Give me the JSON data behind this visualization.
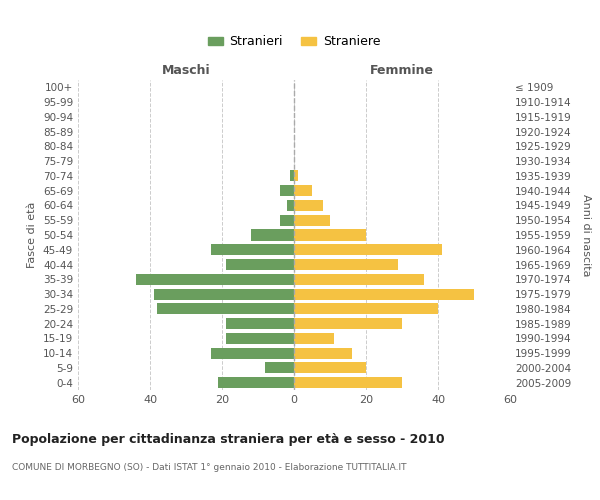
{
  "age_groups": [
    "0-4",
    "5-9",
    "10-14",
    "15-19",
    "20-24",
    "25-29",
    "30-34",
    "35-39",
    "40-44",
    "45-49",
    "50-54",
    "55-59",
    "60-64",
    "65-69",
    "70-74",
    "75-79",
    "80-84",
    "85-89",
    "90-94",
    "95-99",
    "100+"
  ],
  "birth_years": [
    "2005-2009",
    "2000-2004",
    "1995-1999",
    "1990-1994",
    "1985-1989",
    "1980-1984",
    "1975-1979",
    "1970-1974",
    "1965-1969",
    "1960-1964",
    "1955-1959",
    "1950-1954",
    "1945-1949",
    "1940-1944",
    "1935-1939",
    "1930-1934",
    "1925-1929",
    "1920-1924",
    "1915-1919",
    "1910-1914",
    "≤ 1909"
  ],
  "maschi": [
    21,
    8,
    23,
    19,
    19,
    38,
    39,
    44,
    19,
    23,
    12,
    4,
    2,
    4,
    1,
    0,
    0,
    0,
    0,
    0,
    0
  ],
  "femmine": [
    30,
    20,
    16,
    11,
    30,
    40,
    50,
    36,
    29,
    41,
    20,
    10,
    8,
    5,
    1,
    0,
    0,
    0,
    0,
    0,
    0
  ],
  "color_maschi": "#6a9e5e",
  "color_femmine": "#f5c242",
  "title": "Popolazione per cittadinanza straniera per età e sesso - 2010",
  "subtitle": "COMUNE DI MORBEGNO (SO) - Dati ISTAT 1° gennaio 2010 - Elaborazione TUTTITALIA.IT",
  "xlabel_left": "Maschi",
  "xlabel_right": "Femmine",
  "ylabel_left": "Fasce di età",
  "ylabel_right": "Anni di nascita",
  "legend_maschi": "Stranieri",
  "legend_femmine": "Straniere",
  "xlim": 60,
  "background_color": "#ffffff",
  "grid_color": "#cccccc"
}
